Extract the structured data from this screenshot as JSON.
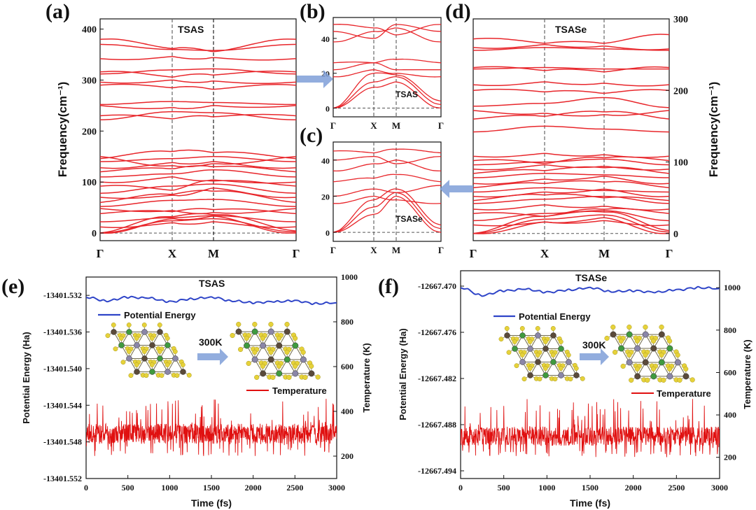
{
  "chart_data": [
    {
      "panel": "(a)",
      "type": "line",
      "subtype": "phonon-dispersion",
      "label": "TSAS",
      "ylabel": "Frequency(cm⁻¹)",
      "ylim": [
        -15,
        420
      ],
      "yticks": [
        0,
        100,
        200,
        300,
        400
      ],
      "kpath": [
        "Γ",
        "X",
        "M",
        "Γ"
      ],
      "line_color": "#e8262b",
      "bands": [
        [
          0,
          28,
          33,
          0
        ],
        [
          0,
          24,
          28,
          2
        ],
        [
          0,
          32,
          36,
          4
        ],
        [
          12,
          20,
          22,
          12
        ],
        [
          22,
          30,
          34,
          22
        ],
        [
          38,
          42,
          46,
          38
        ],
        [
          48,
          44,
          40,
          48
        ],
        [
          52,
          64,
          66,
          52
        ],
        [
          60,
          76,
          82,
          60
        ],
        [
          70,
          74,
          88,
          70
        ],
        [
          78,
          92,
          96,
          78
        ],
        [
          92,
          84,
          102,
          92
        ],
        [
          100,
          110,
          104,
          100
        ],
        [
          110,
          116,
          124,
          110
        ],
        [
          120,
          126,
          130,
          120
        ],
        [
          128,
          138,
          140,
          128
        ],
        [
          140,
          146,
          150,
          140
        ],
        [
          146,
          160,
          158,
          146
        ],
        [
          150,
          132,
          136,
          150
        ],
        [
          222,
          238,
          236,
          222
        ],
        [
          230,
          224,
          228,
          230
        ],
        [
          250,
          246,
          250,
          250
        ],
        [
          252,
          258,
          256,
          252
        ],
        [
          290,
          285,
          282,
          290
        ],
        [
          296,
          300,
          298,
          296
        ],
        [
          312,
          320,
          322,
          312
        ],
        [
          316,
          306,
          310,
          316
        ],
        [
          342,
          346,
          344,
          342
        ],
        [
          370,
          360,
          358,
          370
        ],
        [
          380,
          362,
          356,
          380
        ]
      ]
    },
    {
      "panel": "(b)",
      "type": "line",
      "subtype": "phonon-dispersion",
      "label": "TSAS",
      "ylim": [
        -5,
        52
      ],
      "yticks": [
        0,
        20,
        40
      ],
      "kpath": [
        "Γ",
        "X",
        "M",
        "Γ"
      ],
      "line_color": "#e8262b",
      "bands": [
        [
          0,
          12,
          15,
          0
        ],
        [
          0,
          15,
          18,
          2
        ],
        [
          0,
          20,
          19,
          4
        ],
        [
          18,
          22,
          20,
          18
        ],
        [
          22,
          26,
          22,
          22
        ],
        [
          26,
          26,
          28,
          26
        ],
        [
          38,
          44,
          46,
          38
        ],
        [
          44,
          40,
          48,
          44
        ],
        [
          48,
          46,
          42,
          48
        ]
      ]
    },
    {
      "panel": "(c)",
      "type": "line",
      "subtype": "phonon-dispersion",
      "label": "TSASe",
      "ylim": [
        -5,
        50
      ],
      "yticks": [
        0,
        20,
        40
      ],
      "kpath": [
        "Γ",
        "X",
        "M",
        "Γ"
      ],
      "line_color": "#e8262b",
      "bands": [
        [
          0,
          10,
          20,
          0
        ],
        [
          0,
          14,
          22,
          2
        ],
        [
          0,
          18,
          24,
          4
        ],
        [
          16,
          20,
          18,
          16
        ],
        [
          20,
          24,
          22,
          26
        ],
        [
          28,
          30,
          32,
          28
        ],
        [
          34,
          38,
          40,
          34
        ],
        [
          40,
          42,
          38,
          42
        ],
        [
          45,
          44,
          46,
          44
        ]
      ]
    },
    {
      "panel": "(d)",
      "type": "line",
      "subtype": "phonon-dispersion",
      "label": "TSASe",
      "ylabel": "Frequency(cm⁻¹)",
      "yaxis_side": "right",
      "ylim": [
        -10,
        300
      ],
      "yticks": [
        0,
        100,
        200,
        300
      ],
      "kpath": [
        "Γ",
        "X",
        "M",
        "Γ"
      ],
      "line_color": "#e8262b",
      "bands": [
        [
          0,
          16,
          22,
          0
        ],
        [
          0,
          20,
          26,
          2
        ],
        [
          0,
          24,
          30,
          4
        ],
        [
          12,
          16,
          18,
          12
        ],
        [
          18,
          28,
          32,
          18
        ],
        [
          28,
          24,
          34,
          28
        ],
        [
          34,
          40,
          38,
          34
        ],
        [
          42,
          48,
          52,
          42
        ],
        [
          46,
          54,
          50,
          46
        ],
        [
          52,
          58,
          62,
          52
        ],
        [
          58,
          64,
          60,
          58
        ],
        [
          64,
          70,
          72,
          64
        ],
        [
          70,
          76,
          80,
          70
        ],
        [
          78,
          84,
          82,
          78
        ],
        [
          84,
          88,
          92,
          84
        ],
        [
          90,
          96,
          94,
          90
        ],
        [
          96,
          100,
          104,
          96
        ],
        [
          102,
          98,
          106,
          102
        ],
        [
          108,
          112,
          110,
          108
        ],
        [
          142,
          150,
          146,
          142
        ],
        [
          160,
          164,
          170,
          160
        ],
        [
          172,
          168,
          166,
          172
        ],
        [
          178,
          182,
          190,
          176
        ],
        [
          200,
          198,
          196,
          200
        ],
        [
          208,
          212,
          210,
          208
        ],
        [
          230,
          232,
          230,
          230
        ],
        [
          232,
          228,
          226,
          232
        ],
        [
          260,
          264,
          262,
          258
        ],
        [
          256,
          260,
          258,
          256
        ],
        [
          272,
          266,
          266,
          278
        ]
      ]
    },
    {
      "panel": "(e)",
      "type": "line",
      "subtype": "AIMD",
      "label": "TSAS",
      "xlabel": "Time (fs)",
      "ylabel": "Potential Energy (Ha)",
      "ylabel_right": "Temperature (K)",
      "xlim": [
        0,
        3000
      ],
      "xticks": [
        0,
        500,
        1000,
        1500,
        2000,
        2500,
        3000
      ],
      "ylim": [
        -13401.552,
        -13401.53
      ],
      "yticks": [
        -13401.552,
        -13401.548,
        -13401.544,
        -13401.54,
        -13401.536,
        -13401.532
      ],
      "ylim_right": [
        100,
        1000
      ],
      "yticks_right": [
        200,
        400,
        600,
        800,
        1000
      ],
      "series": [
        {
          "name": "Potential Energy",
          "axis": "left",
          "color": "#2e44c8",
          "x": [
            0,
            250,
            500,
            750,
            1000,
            1250,
            1500,
            1750,
            2000,
            2250,
            2500,
            2750,
            3000
          ],
          "values": [
            -13401.5322,
            -13401.5326,
            -13401.5322,
            -13401.5323,
            -13401.5327,
            -13401.5324,
            -13401.5322,
            -13401.5326,
            -13401.5328,
            -13401.5327,
            -13401.5326,
            -13401.5329,
            -13401.5328
          ]
        },
        {
          "name": "Temperature",
          "axis": "right",
          "color": "#e01010",
          "mean": 300,
          "min": 200,
          "max": 460
        }
      ],
      "inset_label": "300K"
    },
    {
      "panel": "(f)",
      "type": "line",
      "subtype": "AIMD",
      "label": "TSASe",
      "xlabel": "Time (fs)",
      "ylabel": "Potential Energy (Ha)",
      "ylabel_right": "Temperature (K)",
      "xlim": [
        0,
        3000
      ],
      "xticks": [
        0,
        500,
        1000,
        1500,
        2000,
        2500,
        3000
      ],
      "ylim": [
        -12667.495,
        -12667.468
      ],
      "yticks": [
        -12667.494,
        -12667.488,
        -12667.482,
        -12667.476,
        -12667.47
      ],
      "ylim_right": [
        100,
        1080
      ],
      "yticks_right": [
        200,
        400,
        600,
        800,
        1000
      ],
      "series": [
        {
          "name": "Potential Energy",
          "axis": "left",
          "color": "#2e44c8",
          "x": [
            0,
            250,
            500,
            750,
            1000,
            1250,
            1500,
            1750,
            2000,
            2250,
            2500,
            2750,
            3000
          ],
          "values": [
            -12667.4702,
            -12667.4712,
            -12667.4706,
            -12667.4704,
            -12667.4708,
            -12667.4705,
            -12667.4702,
            -12667.4707,
            -12667.4706,
            -12667.4708,
            -12667.4705,
            -12667.4702,
            -12667.4703
          ]
        },
        {
          "name": "Temperature",
          "axis": "right",
          "color": "#e01010",
          "mean": 300,
          "min": 200,
          "max": 480
        }
      ],
      "inset_label": "300K"
    }
  ]
}
